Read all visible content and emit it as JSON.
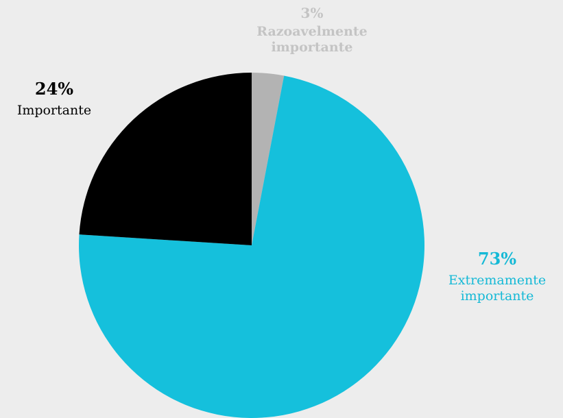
{
  "chart_data": {
    "type": "pie",
    "title": "",
    "start_angle_deg": 0,
    "direction": "clockwise",
    "slices": [
      {
        "label": "Razoavelmente importante",
        "value": 3,
        "color": "#b3b3b3",
        "label_color": "#bfbfbf",
        "label_lines": [
          "Razoavelmente",
          "importante"
        ],
        "percent_text": "3%"
      },
      {
        "label": "Extremamente importante",
        "value": 73,
        "color": "#15c0dc",
        "label_color": "#15b9d6",
        "label_lines": [
          "Extremamente",
          "importante"
        ],
        "percent_text": "73%"
      },
      {
        "label": "Importante",
        "value": 24,
        "color": "#000000",
        "label_color": "#000000",
        "label_lines": [
          "Importante",
          ""
        ],
        "percent_text": "24%"
      }
    ]
  },
  "background_color": "#ededed"
}
